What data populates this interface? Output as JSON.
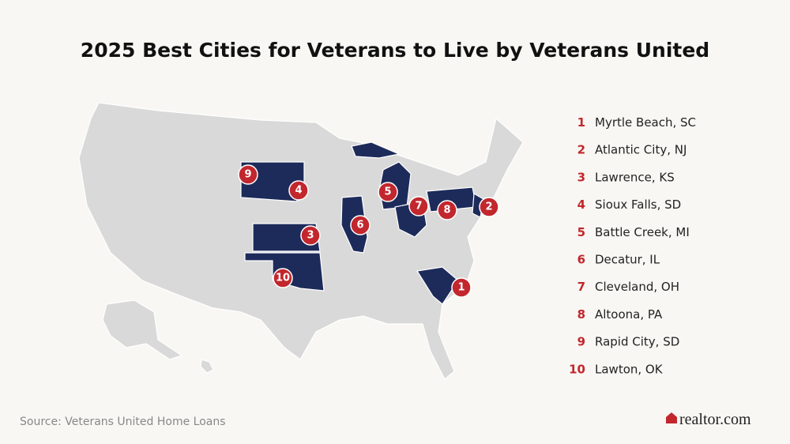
{
  "title": "2025 Best Cities for Veterans to Live by Veterans United",
  "rankings": [
    {
      "rank": 1,
      "city": "Myrtle Beach, SC"
    },
    {
      "rank": 2,
      "city": "Atlantic City, NJ"
    },
    {
      "rank": 3,
      "city": "Lawrence, KS"
    },
    {
      "rank": 4,
      "city": "Sioux Falls, SD"
    },
    {
      "rank": 5,
      "city": "Battle Creek, MI"
    },
    {
      "rank": 6,
      "city": "Decatur, IL"
    },
    {
      "rank": 7,
      "city": "Cleveland, OH"
    },
    {
      "rank": 8,
      "city": "Altoona, PA"
    },
    {
      "rank": 9,
      "city": "Rapid City, SD"
    },
    {
      "rank": 10,
      "city": "Lawton, OK"
    }
  ],
  "source": "Source: Veterans United Home Loans",
  "logo": "realtor.com"
}
